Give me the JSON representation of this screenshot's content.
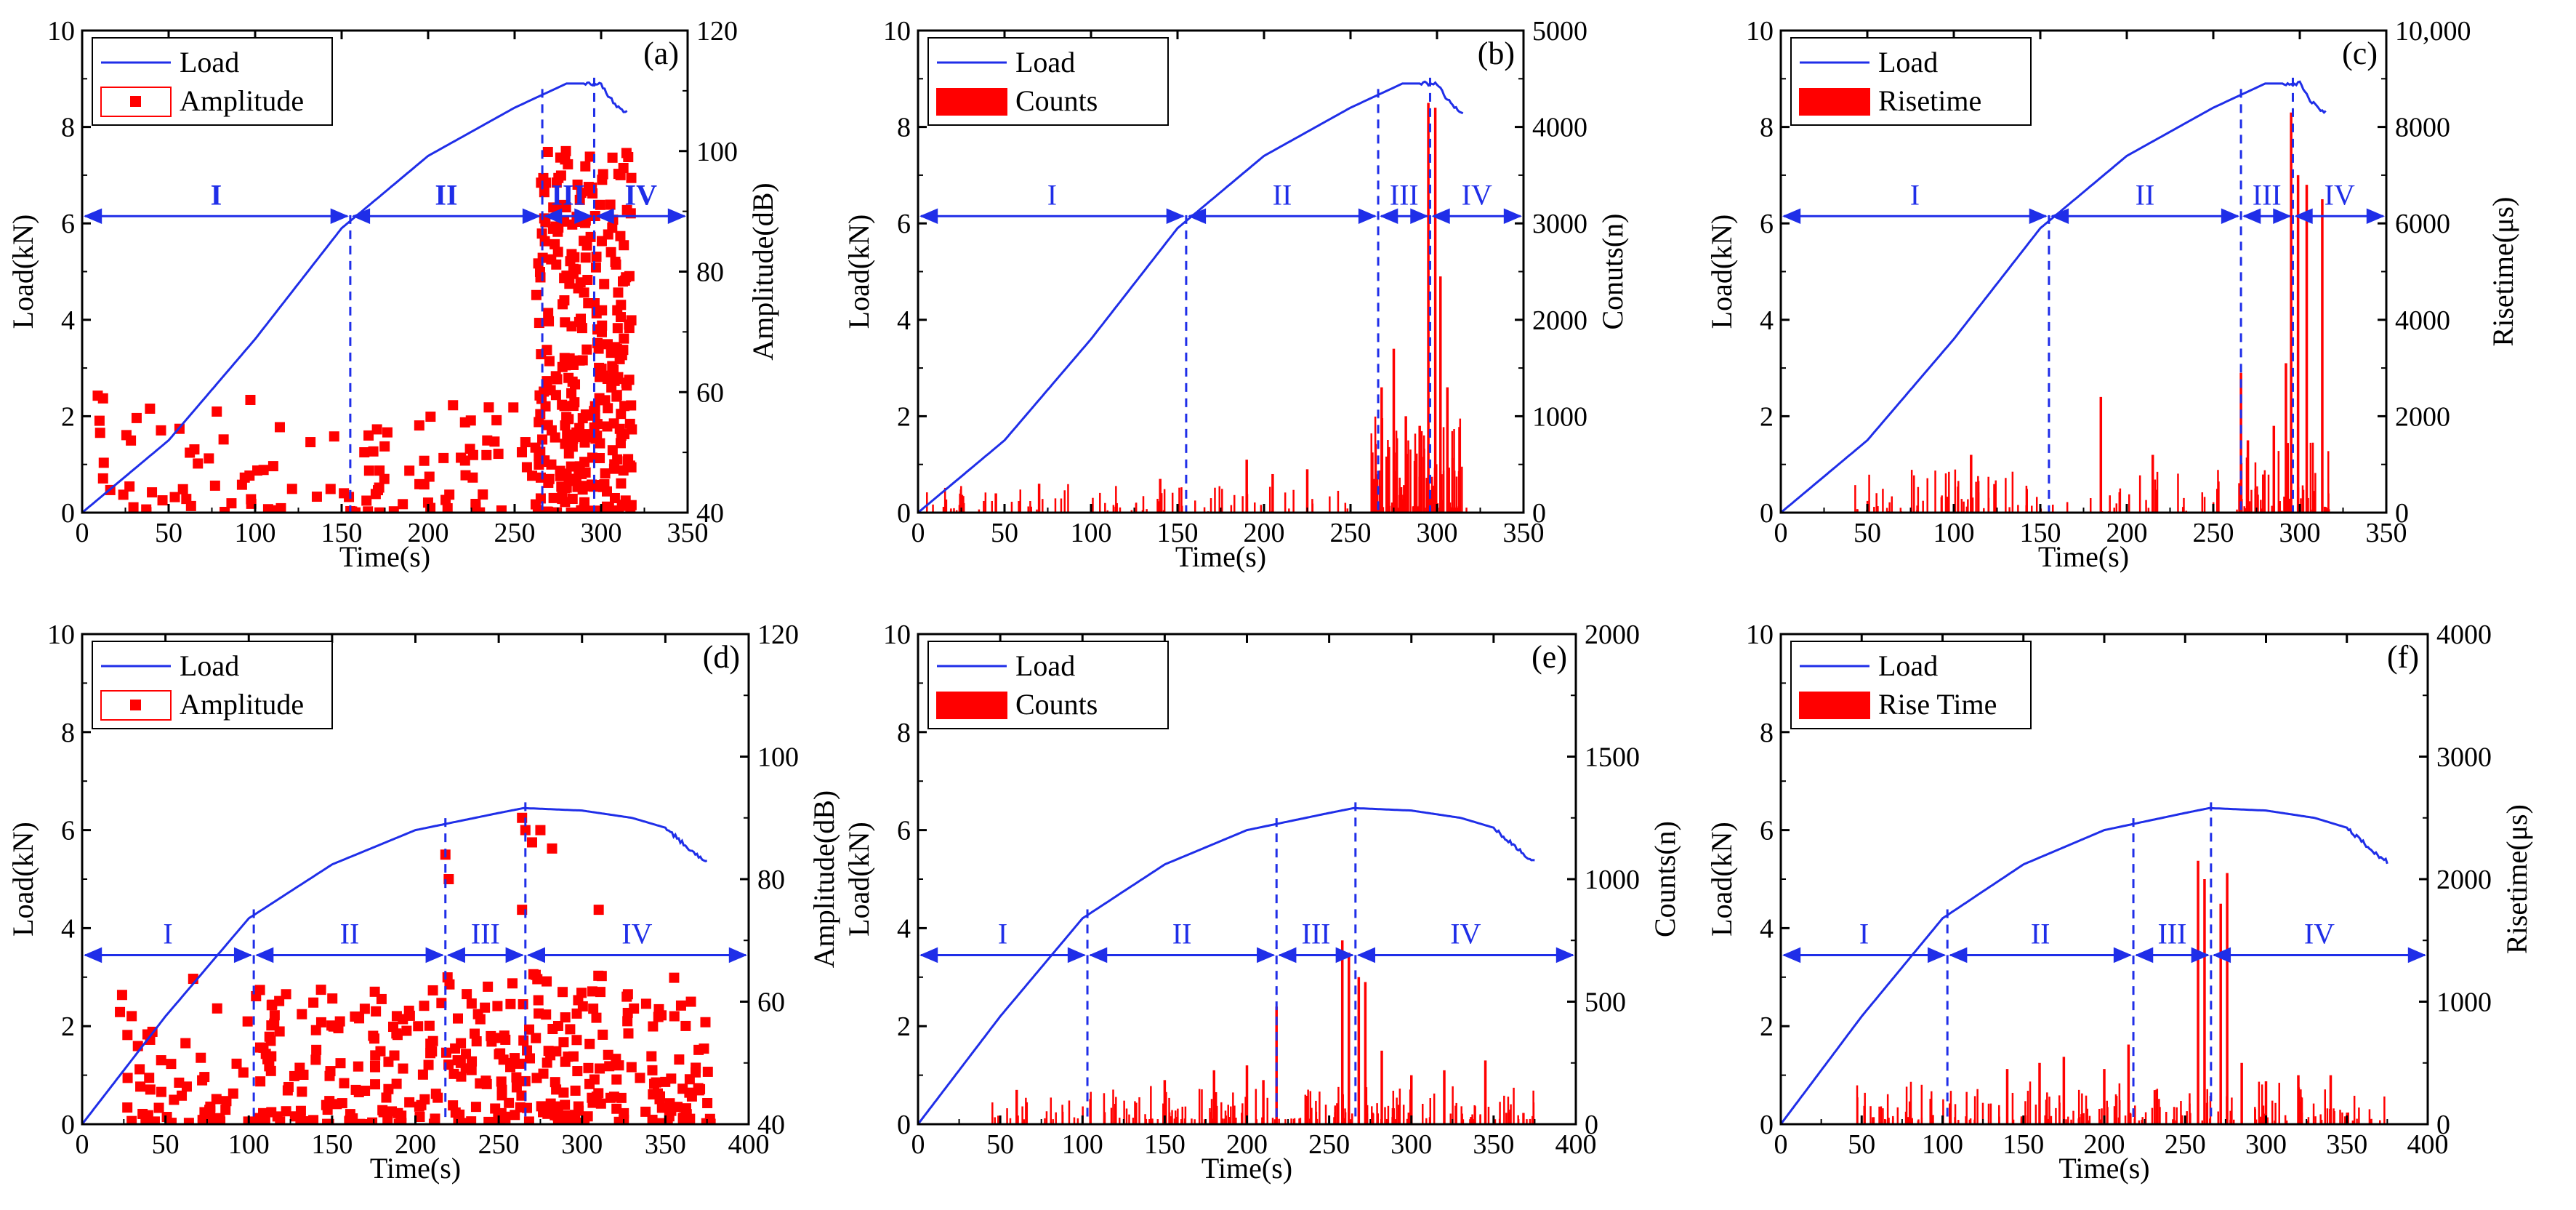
{
  "figure": {
    "description_title": "Load and acoustic emission parameters versus time for six specimens"
  },
  "chart_data": [
    {
      "id": "a",
      "panel_label": "(a)",
      "type": "scatter",
      "title": "",
      "xlabel": "Time(s)",
      "ylabel_left": "Load(kN)",
      "ylabel_right": "Amplitude(dB)",
      "xlim": [
        0,
        350
      ],
      "xticks": [
        0,
        50,
        100,
        150,
        200,
        250,
        300,
        350
      ],
      "ylim_left": [
        0,
        10
      ],
      "yticks_left": [
        0,
        2,
        4,
        6,
        8,
        10
      ],
      "ylim_right": [
        40,
        120
      ],
      "yticks_right": [
        40,
        60,
        80,
        100,
        120
      ],
      "ytick_labels_right": [
        "40",
        "60",
        "80",
        "100",
        "120"
      ],
      "legend": [
        "Load",
        "Amplitude"
      ],
      "load_curve": [
        [
          0,
          0
        ],
        [
          50,
          1.5
        ],
        [
          100,
          3.6
        ],
        [
          150,
          5.9
        ],
        [
          200,
          7.4
        ],
        [
          250,
          8.4
        ],
        [
          280,
          8.9
        ],
        [
          300,
          8.9
        ],
        [
          305,
          8.6
        ],
        [
          310,
          8.4
        ],
        [
          315,
          8.3
        ]
      ],
      "boundaries": [
        155,
        266,
        296
      ],
      "arrow_y": 6.15,
      "stages": [
        "I",
        "II",
        "III",
        "IV"
      ],
      "stage_bold": true,
      "ae_series": {
        "name": "Amplitude",
        "kind": "scatter",
        "seed": 11,
        "segments": [
          {
            "x0": 5,
            "x1": 155,
            "n": 55,
            "lo": 40,
            "hi": 60
          },
          {
            "x0": 155,
            "x1": 266,
            "n": 60,
            "lo": 40,
            "hi": 58
          },
          {
            "x0": 262,
            "x1": 318,
            "n": 300,
            "lo": 40,
            "hi": 100
          }
        ]
      }
    },
    {
      "id": "b",
      "panel_label": "(b)",
      "type": "bar",
      "title": "",
      "xlabel": "Time(s)",
      "ylabel_left": "Load(kN)",
      "ylabel_right": "Conuts(n)",
      "xlim": [
        0,
        350
      ],
      "xticks": [
        0,
        50,
        100,
        150,
        200,
        250,
        300,
        350
      ],
      "ylim_left": [
        0,
        10
      ],
      "yticks_left": [
        0,
        2,
        4,
        6,
        8,
        10
      ],
      "ylim_right": [
        0,
        5000
      ],
      "yticks_right": [
        0,
        1000,
        2000,
        3000,
        4000,
        5000
      ],
      "ytick_labels_right": [
        "0",
        "1000",
        "2000",
        "3000",
        "4000",
        "5000"
      ],
      "legend": [
        "Load",
        "Counts"
      ],
      "load_curve": [
        [
          0,
          0
        ],
        [
          50,
          1.5
        ],
        [
          100,
          3.6
        ],
        [
          150,
          5.9
        ],
        [
          200,
          7.4
        ],
        [
          250,
          8.4
        ],
        [
          280,
          8.9
        ],
        [
          300,
          8.9
        ],
        [
          305,
          8.6
        ],
        [
          310,
          8.4
        ],
        [
          315,
          8.3
        ]
      ],
      "boundaries": [
        155,
        266,
        296
      ],
      "arrow_y": 6.15,
      "stages": [
        "I",
        "II",
        "III",
        "IV"
      ],
      "stage_bold": false,
      "ae_series": {
        "name": "Counts",
        "kind": "bars",
        "seed": 23,
        "background": [
          {
            "x0": 5,
            "x1": 265,
            "n": 110,
            "lo": 0,
            "hi": 300
          },
          {
            "x0": 262,
            "x1": 318,
            "n": 120,
            "lo": 50,
            "hi": 1000
          }
        ],
        "spikes": [
          [
            45,
            200
          ],
          [
            70,
            300
          ],
          [
            140,
            350
          ],
          [
            190,
            550
          ],
          [
            205,
            400
          ],
          [
            225,
            450
          ],
          [
            268,
            1300
          ],
          [
            275,
            1700
          ],
          [
            282,
            1000
          ],
          [
            290,
            900
          ],
          [
            295,
            4250
          ],
          [
            299,
            4200
          ],
          [
            302,
            2450
          ],
          [
            306,
            1300
          ]
        ]
      }
    },
    {
      "id": "c",
      "panel_label": "(c)",
      "type": "bar",
      "title": "",
      "xlabel": "Time(s)",
      "ylabel_left": "Load(kN)",
      "ylabel_right": "Risetime(μs)",
      "xlim": [
        0,
        350
      ],
      "xticks": [
        0,
        50,
        100,
        150,
        200,
        250,
        300,
        350
      ],
      "ylim_left": [
        0,
        10
      ],
      "yticks_left": [
        0,
        2,
        4,
        6,
        8,
        10
      ],
      "ylim_right": [
        0,
        10000
      ],
      "yticks_right": [
        0,
        2000,
        4000,
        6000,
        8000,
        10000
      ],
      "ytick_labels_right": [
        "0",
        "2000",
        "4000",
        "6000",
        "8000",
        "10,000"
      ],
      "legend": [
        "Load",
        "Risetime"
      ],
      "load_curve": [
        [
          0,
          0
        ],
        [
          50,
          1.5
        ],
        [
          100,
          3.6
        ],
        [
          150,
          5.9
        ],
        [
          200,
          7.4
        ],
        [
          250,
          8.4
        ],
        [
          280,
          8.9
        ],
        [
          300,
          8.9
        ],
        [
          305,
          8.6
        ],
        [
          310,
          8.4
        ],
        [
          315,
          8.3
        ]
      ],
      "boundaries": [
        155,
        266,
        296
      ],
      "arrow_y": 6.15,
      "stages": [
        "I",
        "II",
        "III",
        "IV"
      ],
      "stage_bold": false,
      "ae_series": {
        "name": "Risetime",
        "kind": "bars",
        "seed": 37,
        "background": [
          {
            "x0": 40,
            "x1": 265,
            "n": 100,
            "lo": 0,
            "hi": 900
          },
          {
            "x0": 262,
            "x1": 318,
            "n": 60,
            "lo": 0,
            "hi": 1500
          }
        ],
        "spikes": [
          [
            110,
            1200
          ],
          [
            185,
            2400
          ],
          [
            215,
            1200
          ],
          [
            266,
            2900
          ],
          [
            270,
            1500
          ],
          [
            285,
            1800
          ],
          [
            292,
            3100
          ],
          [
            295,
            8300
          ],
          [
            299,
            7000
          ],
          [
            304,
            6800
          ],
          [
            313,
            6500
          ]
        ]
      }
    },
    {
      "id": "d",
      "panel_label": "(d)",
      "type": "scatter",
      "title": "",
      "xlabel": "Time(s)",
      "ylabel_left": "Load(kN)",
      "ylabel_right": "Amplitude(dB)",
      "xlim": [
        0,
        400
      ],
      "xticks": [
        0,
        50,
        100,
        150,
        200,
        250,
        300,
        350,
        400
      ],
      "ylim_left": [
        0,
        10
      ],
      "yticks_left": [
        0,
        2,
        4,
        6,
        8,
        10
      ],
      "ylim_right": [
        40,
        120
      ],
      "yticks_right": [
        40,
        60,
        80,
        100,
        120
      ],
      "ytick_labels_right": [
        "40",
        "60",
        "80",
        "100",
        "120"
      ],
      "legend": [
        "Load",
        "Amplitude"
      ],
      "load_curve": [
        [
          0,
          0
        ],
        [
          50,
          2.2
        ],
        [
          100,
          4.2
        ],
        [
          150,
          5.3
        ],
        [
          200,
          6.0
        ],
        [
          250,
          6.35
        ],
        [
          265,
          6.45
        ],
        [
          300,
          6.4
        ],
        [
          330,
          6.25
        ],
        [
          350,
          6.05
        ],
        [
          365,
          5.6
        ],
        [
          375,
          5.35
        ]
      ],
      "boundaries": [
        103,
        218,
        266
      ],
      "arrow_y": 3.45,
      "stages": [
        "I",
        "II",
        "III",
        "IV"
      ],
      "stage_bold": false,
      "ae_series": {
        "name": "Amplitude",
        "kind": "scatter",
        "seed": 53,
        "segments": [
          {
            "x0": 20,
            "x1": 103,
            "n": 55,
            "lo": 40,
            "hi": 64
          },
          {
            "x0": 103,
            "x1": 218,
            "n": 130,
            "lo": 40,
            "hi": 62
          },
          {
            "x0": 218,
            "x1": 266,
            "n": 70,
            "lo": 40,
            "hi": 64
          },
          {
            "x0": 266,
            "x1": 378,
            "n": 150,
            "lo": 40,
            "hi": 65
          }
        ],
        "extra_points": [
          [
            218,
            84
          ],
          [
            220,
            80
          ],
          [
            264,
            90
          ],
          [
            266,
            88
          ],
          [
            270,
            86
          ],
          [
            275,
            88
          ],
          [
            264,
            75
          ],
          [
            282,
            85
          ],
          [
            310,
            75
          ]
        ]
      }
    },
    {
      "id": "e",
      "panel_label": "(e)",
      "type": "bar",
      "title": "",
      "xlabel": "Time(s)",
      "ylabel_left": "Load(kN)",
      "ylabel_right": "Counts(n)",
      "xlim": [
        0,
        400
      ],
      "xticks": [
        0,
        50,
        100,
        150,
        200,
        250,
        300,
        350,
        400
      ],
      "ylim_left": [
        0,
        10
      ],
      "yticks_left": [
        0,
        2,
        4,
        6,
        8,
        10
      ],
      "ylim_right": [
        0,
        2000
      ],
      "yticks_right": [
        0,
        500,
        1000,
        1500,
        2000
      ],
      "ytick_labels_right": [
        "0",
        "500",
        "1000",
        "1500",
        "2000"
      ],
      "legend": [
        "Load",
        "Counts"
      ],
      "load_curve": [
        [
          0,
          0
        ],
        [
          50,
          2.2
        ],
        [
          100,
          4.2
        ],
        [
          150,
          5.3
        ],
        [
          200,
          6.0
        ],
        [
          250,
          6.35
        ],
        [
          265,
          6.45
        ],
        [
          300,
          6.4
        ],
        [
          330,
          6.25
        ],
        [
          350,
          6.05
        ],
        [
          365,
          5.6
        ],
        [
          375,
          5.35
        ]
      ],
      "boundaries": [
        103,
        218,
        266
      ],
      "arrow_y": 3.45,
      "stages": [
        "I",
        "II",
        "III",
        "IV"
      ],
      "stage_bold": false,
      "ae_series": {
        "name": "Counts",
        "kind": "bars",
        "seed": 71,
        "background": [
          {
            "x0": 45,
            "x1": 378,
            "n": 200,
            "lo": 20,
            "hi": 160
          }
        ],
        "spikes": [
          [
            60,
            140
          ],
          [
            150,
            180
          ],
          [
            180,
            220
          ],
          [
            200,
            240
          ],
          [
            210,
            180
          ],
          [
            218,
            480
          ],
          [
            258,
            750
          ],
          [
            262,
            700
          ],
          [
            268,
            600
          ],
          [
            272,
            580
          ],
          [
            282,
            300
          ],
          [
            300,
            200
          ],
          [
            320,
            220
          ],
          [
            345,
            260
          ]
        ]
      }
    },
    {
      "id": "f",
      "panel_label": "(f)",
      "type": "bar",
      "title": "",
      "xlabel": "Time(s)",
      "ylabel_left": "Load(kN)",
      "ylabel_right": "Risetime(μs)",
      "xlim": [
        0,
        400
      ],
      "xticks": [
        0,
        50,
        100,
        150,
        200,
        250,
        300,
        350,
        400
      ],
      "ylim_left": [
        0,
        10
      ],
      "yticks_left": [
        0,
        2,
        4,
        6,
        8,
        10
      ],
      "ylim_right": [
        0,
        4000
      ],
      "yticks_right": [
        0,
        1000,
        2000,
        3000,
        4000
      ],
      "ytick_labels_right": [
        "0",
        "1000",
        "2000",
        "3000",
        "4000"
      ],
      "legend": [
        "Load",
        "Rise Time"
      ],
      "load_curve": [
        [
          0,
          0
        ],
        [
          50,
          2.2
        ],
        [
          100,
          4.2
        ],
        [
          150,
          5.3
        ],
        [
          200,
          6.0
        ],
        [
          250,
          6.35
        ],
        [
          265,
          6.45
        ],
        [
          300,
          6.4
        ],
        [
          330,
          6.25
        ],
        [
          350,
          6.05
        ],
        [
          365,
          5.6
        ],
        [
          375,
          5.35
        ]
      ],
      "boundaries": [
        103,
        218,
        266
      ],
      "arrow_y": 3.45,
      "stages": [
        "I",
        "II",
        "III",
        "IV"
      ],
      "stage_bold": false,
      "ae_series": {
        "name": "Rise Time",
        "kind": "bars",
        "seed": 89,
        "background": [
          {
            "x0": 45,
            "x1": 378,
            "n": 200,
            "lo": 30,
            "hi": 350
          }
        ],
        "spikes": [
          [
            140,
            450
          ],
          [
            160,
            500
          ],
          [
            175,
            550
          ],
          [
            200,
            450
          ],
          [
            215,
            650
          ],
          [
            258,
            2150
          ],
          [
            262,
            2000
          ],
          [
            272,
            1800
          ],
          [
            276,
            2050
          ],
          [
            285,
            500
          ],
          [
            300,
            350
          ],
          [
            320,
            400
          ],
          [
            340,
            400
          ]
        ]
      }
    }
  ]
}
